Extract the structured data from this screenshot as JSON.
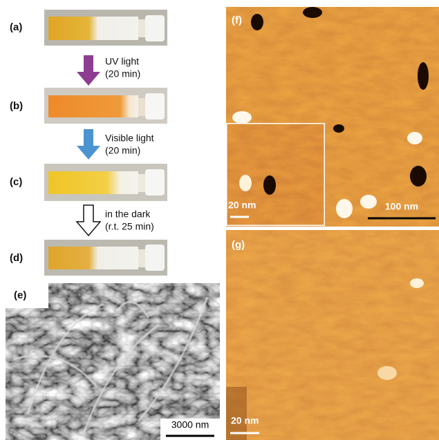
{
  "panels": {
    "a": {
      "label": "(a)"
    },
    "b": {
      "label": "(b)"
    },
    "c": {
      "label": "(c)"
    },
    "d": {
      "label": "(d)"
    },
    "e": {
      "label": "(e)",
      "scale_bar": "3000 nm"
    },
    "f": {
      "label": "(f)",
      "inset_scale_bar": "20 nm",
      "scale_bar": "100 nm"
    },
    "g": {
      "label": "(g)",
      "scale_bar": "20 nm"
    }
  },
  "steps": [
    {
      "line1": "UV light",
      "line2": "(20 min)"
    },
    {
      "line1": "Visible light",
      "line2": "(20 min)"
    },
    {
      "line1": "in the dark",
      "line2": "(r.t. 25 min)"
    }
  ]
}
